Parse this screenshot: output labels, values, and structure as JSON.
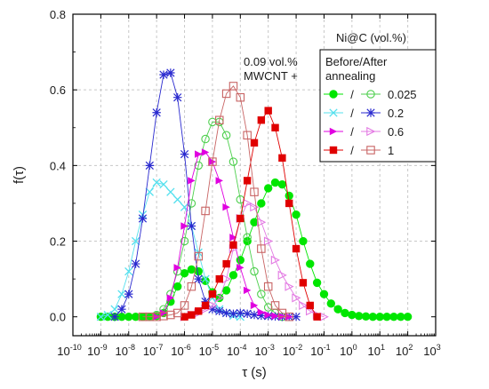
{
  "chart_data": {
    "type": "line",
    "xlabel": "τ (s)",
    "ylabel": "f(τ)",
    "x_scale": "log",
    "xlim_log10": [
      -10,
      3
    ],
    "ylim": [
      -0.05,
      0.8
    ],
    "x_tick_exponents": [
      -10,
      -9,
      -8,
      -7,
      -6,
      -5,
      -4,
      -3,
      -2,
      -1,
      0,
      1,
      2,
      3
    ],
    "y_ticks": [
      0.0,
      0.2,
      0.4,
      0.6,
      0.8
    ],
    "grid": true,
    "legend_placement": "top-right",
    "legend_title": "Ni@C (vol.%)",
    "legend_subtitle": "Before/After annealing",
    "legend_separator": "/",
    "annotation_line1": "0.09 vol.%",
    "annotation_line2": "MWCNT +",
    "series": [
      {
        "name": "0.025",
        "legend_group": 0,
        "state": "before",
        "color": "#00e600",
        "marker": "filled-circle",
        "x_log10": [
          -9,
          -8.75,
          -8.5,
          -8.25,
          -8,
          -7.75,
          -7.5,
          -7.25,
          -7,
          -6.75,
          -6.5,
          -6.25,
          -6,
          -5.75,
          -5.5,
          -5.25,
          -5,
          -4.75,
          -4.5,
          -4.25,
          -4,
          -3.75,
          -3.5,
          -3.25,
          -3,
          -2.75,
          -2.5,
          -2.25,
          -2,
          -1.75,
          -1.5,
          -1.25,
          -1,
          -0.75,
          -0.5,
          -0.25,
          0,
          0.25,
          0.5,
          0.75,
          1,
          1.25,
          1.5,
          1.75,
          2
        ],
        "y": [
          0,
          0,
          0,
          0,
          0,
          0,
          0,
          0,
          0.002,
          0.01,
          0.04,
          0.08,
          0.115,
          0.125,
          0.12,
          0.095,
          0.065,
          0.05,
          0.07,
          0.11,
          0.15,
          0.2,
          0.25,
          0.3,
          0.34,
          0.355,
          0.35,
          0.32,
          0.27,
          0.2,
          0.14,
          0.09,
          0.06,
          0.035,
          0.02,
          0.01,
          0.005,
          0.002,
          0.001,
          0,
          0,
          0,
          0,
          0,
          0
        ]
      },
      {
        "name": "0.025",
        "legend_group": 0,
        "state": "after",
        "color": "#4ccf4c",
        "marker": "open-circle",
        "x_log10": [
          -7.25,
          -7,
          -6.75,
          -6.5,
          -6.25,
          -6,
          -5.75,
          -5.5,
          -5.25,
          -5,
          -4.75,
          -4.5,
          -4.25,
          -4,
          -3.75,
          -3.5,
          -3.25,
          -3,
          -2.75,
          -2.5
        ],
        "y": [
          0,
          0.005,
          0.02,
          0.06,
          0.12,
          0.2,
          0.3,
          0.4,
          0.47,
          0.515,
          0.515,
          0.48,
          0.41,
          0.31,
          0.21,
          0.12,
          0.06,
          0.025,
          0.01,
          0
        ]
      },
      {
        "name": "0.2",
        "legend_group": 1,
        "state": "before",
        "color": "#55e0ee",
        "marker": "x",
        "x_log10": [
          -9,
          -8.75,
          -8.5,
          -8.25,
          -8,
          -7.75,
          -7.5,
          -7.25,
          -7,
          -6.75,
          -6.5,
          -6.25,
          -6,
          -5.75,
          -5.5,
          -5.25,
          -5,
          -4.75,
          -4.5,
          -4.25,
          -4
        ],
        "y": [
          0,
          0.005,
          0.02,
          0.06,
          0.12,
          0.2,
          0.27,
          0.33,
          0.355,
          0.35,
          0.33,
          0.31,
          0.29,
          0.24,
          0.17,
          0.1,
          0.05,
          0.02,
          0.01,
          0.003,
          0
        ]
      },
      {
        "name": "0.2",
        "legend_group": 1,
        "state": "after",
        "color": "#2a2acf",
        "marker": "asterisk",
        "x_log10": [
          -8.5,
          -8.25,
          -8,
          -7.75,
          -7.5,
          -7.25,
          -7,
          -6.75,
          -6.5,
          -6.25,
          -6,
          -5.75,
          -5.5,
          -5.25,
          -5,
          -4.75,
          -4.5,
          -4.25,
          -4,
          -3.75,
          -3.5,
          -3.25,
          -3,
          -2.75,
          -2.5,
          -2.25,
          -2
        ],
        "y": [
          0,
          0.02,
          0.06,
          0.14,
          0.26,
          0.4,
          0.54,
          0.64,
          0.645,
          0.58,
          0.43,
          0.24,
          0.1,
          0.04,
          0.02,
          0.015,
          0.01,
          0.008,
          0.01,
          0.008,
          0.005,
          0.003,
          0.002,
          0.001,
          0,
          0,
          0
        ]
      },
      {
        "name": "0.6",
        "legend_group": 2,
        "state": "before",
        "color": "#e000e0",
        "marker": "filled-triangle-right",
        "x_log10": [
          -7,
          -6.75,
          -6.5,
          -6.25,
          -6,
          -5.75,
          -5.5,
          -5.25,
          -5,
          -4.75,
          -4.5,
          -4.25,
          -4,
          -3.75,
          -3.5,
          -3.25,
          -3,
          -2.75,
          -2.5,
          -2.25
        ],
        "y": [
          0,
          0.01,
          0.05,
          0.13,
          0.24,
          0.36,
          0.43,
          0.435,
          0.41,
          0.36,
          0.29,
          0.21,
          0.13,
          0.07,
          0.03,
          0.012,
          0.005,
          0.002,
          0.001,
          0
        ]
      },
      {
        "name": "0.6",
        "legend_group": 2,
        "state": "after",
        "color": "#e37ae3",
        "marker": "open-triangle-right",
        "x_log10": [
          -6,
          -5.75,
          -5.5,
          -5.25,
          -5,
          -4.75,
          -4.5,
          -4.25,
          -4,
          -3.75,
          -3.5,
          -3.25,
          -3,
          -2.75,
          -2.5,
          -2.25,
          -2,
          -1.75,
          -1.5,
          -1.25,
          -1
        ],
        "y": [
          0,
          0.005,
          0.01,
          0.02,
          0.03,
          0.05,
          0.1,
          0.18,
          0.26,
          0.3,
          0.29,
          0.25,
          0.2,
          0.15,
          0.11,
          0.08,
          0.05,
          0.03,
          0.015,
          0.005,
          0
        ]
      },
      {
        "name": "1",
        "legend_group": 3,
        "state": "before",
        "color": "#e00000",
        "marker": "filled-square",
        "x_log10": [
          -6,
          -5.75,
          -5.5,
          -5.25,
          -5,
          -4.75,
          -4.5,
          -4.25,
          -4,
          -3.75,
          -3.5,
          -3.25,
          -3,
          -2.75,
          -2.5,
          -2.25,
          -2,
          -1.75,
          -1.5,
          -1.25
        ],
        "y": [
          0,
          0.005,
          0.015,
          0.03,
          0.06,
          0.1,
          0.14,
          0.19,
          0.26,
          0.36,
          0.46,
          0.52,
          0.545,
          0.5,
          0.42,
          0.3,
          0.18,
          0.09,
          0.03,
          0
        ]
      },
      {
        "name": "1",
        "legend_group": 3,
        "state": "after",
        "color": "#c86464",
        "marker": "open-square",
        "x_log10": [
          -7.5,
          -7.25,
          -7,
          -6.75,
          -6.5,
          -6.25,
          -6,
          -5.75,
          -5.5,
          -5.25,
          -5,
          -4.75,
          -4.5,
          -4.25,
          -4,
          -3.75,
          -3.5,
          -3.25,
          -3,
          -2.75,
          -2.5,
          -2.25
        ],
        "y": [
          0,
          0,
          0,
          0.002,
          0.005,
          0.01,
          0.03,
          0.08,
          0.16,
          0.28,
          0.41,
          0.52,
          0.59,
          0.61,
          0.58,
          0.48,
          0.33,
          0.18,
          0.08,
          0.03,
          0.01,
          0
        ]
      }
    ]
  }
}
